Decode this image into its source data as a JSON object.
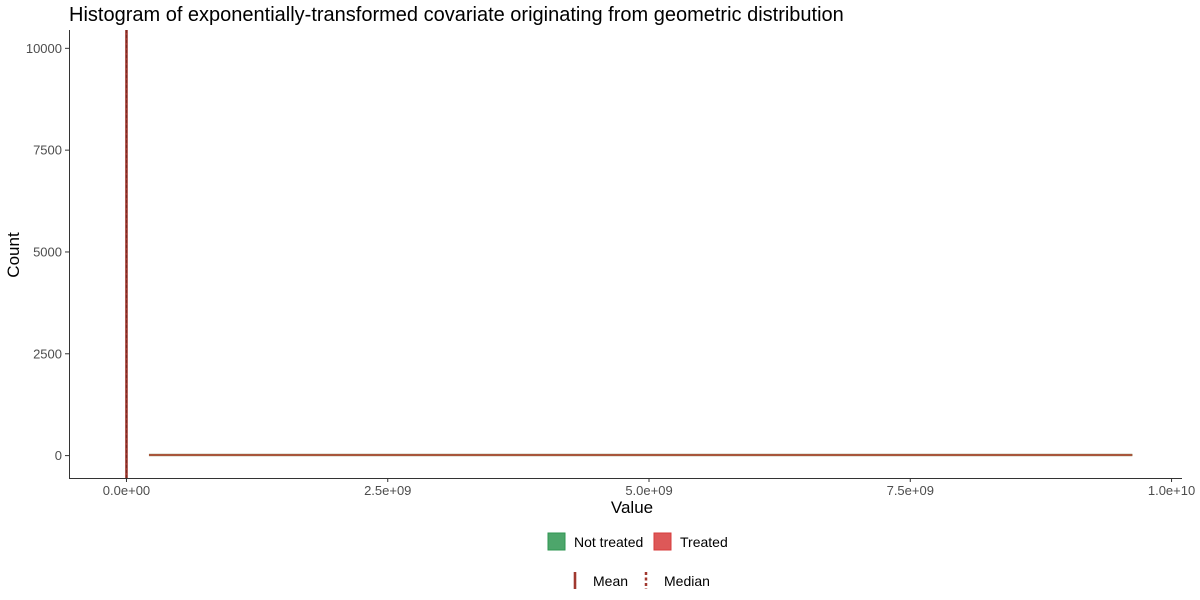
{
  "chart_data": {
    "type": "bar",
    "title": "Histogram of exponentially-transformed covariate originating from geometric distribution",
    "xlabel": "Value",
    "ylabel": "Count",
    "xlim": [
      -550000000,
      10100000000
    ],
    "ylim": [
      -550,
      10450
    ],
    "x_ticks": [
      {
        "value": 0,
        "label": "0.0e+00"
      },
      {
        "value": 2500000000,
        "label": "2.5e+09"
      },
      {
        "value": 5000000000,
        "label": "5.0e+09"
      },
      {
        "value": 7500000000,
        "label": "7.5e+09"
      },
      {
        "value": 10000000000,
        "label": "1.0e+10"
      }
    ],
    "y_ticks": [
      {
        "value": 0,
        "label": "0"
      },
      {
        "value": 2500,
        "label": "2500"
      },
      {
        "value": 5000,
        "label": "5000"
      },
      {
        "value": 7500,
        "label": "7500"
      },
      {
        "value": 10000,
        "label": "10000"
      }
    ],
    "series": [
      {
        "name": "Not treated",
        "color": "#2e9651",
        "x_range": [
          220000000,
          9620000000
        ],
        "counts": 0
      },
      {
        "name": "Treated",
        "color": "#d73b3b",
        "x_range": [
          220000000,
          9620000000
        ],
        "counts": 0
      }
    ],
    "reference_lines": [
      {
        "name": "Mean",
        "x": 0,
        "style": "solid",
        "color": "#a0382f"
      },
      {
        "name": "Median",
        "x": 0,
        "style": "dashed",
        "color": "#a0382f"
      }
    ],
    "grid": false,
    "legend_position": "bottom"
  },
  "legend": {
    "fill_items": [
      {
        "label": "Not treated",
        "color": "#2e9651"
      },
      {
        "label": "Treated",
        "color": "#d73b3b"
      }
    ],
    "line_items": [
      {
        "label": "Mean",
        "style": "solid",
        "color": "#a0382f"
      },
      {
        "label": "Median",
        "style": "dashed",
        "color": "#a0382f"
      }
    ]
  }
}
